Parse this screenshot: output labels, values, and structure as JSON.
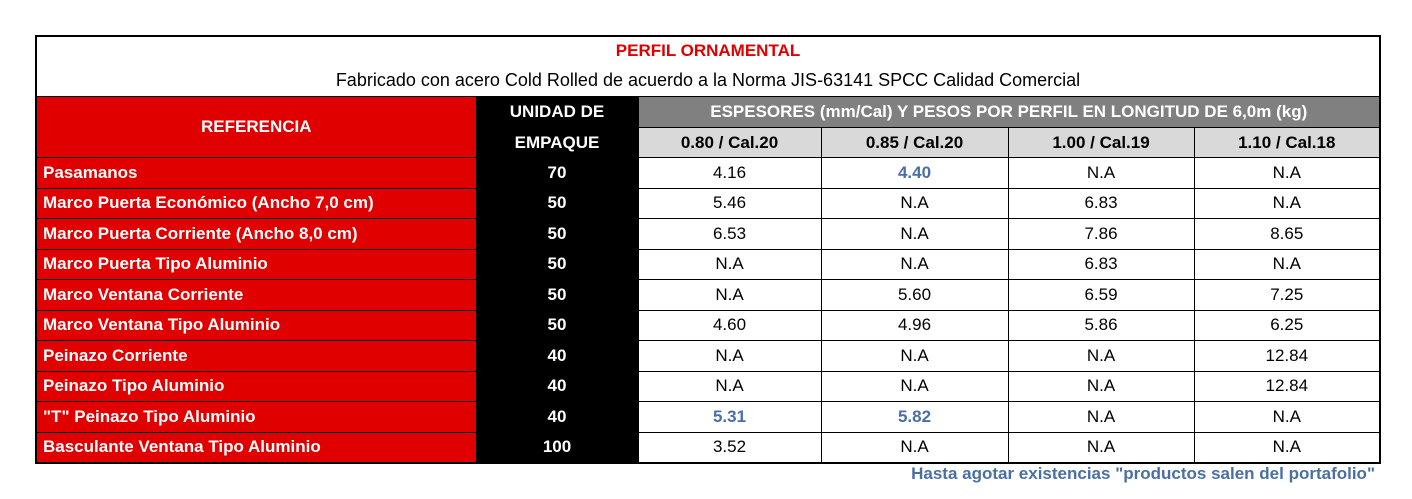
{
  "title": "PERFIL ORNAMENTAL",
  "subtitle": "Fabricado con acero Cold Rolled de acuerdo a la Norma JIS-63141 SPCC Calidad Comercial",
  "headers": {
    "reference": "REFERENCIA",
    "unit": [
      "UNIDAD DE",
      "EMPAQUE"
    ],
    "group": "ESPESORES (mm/Cal) Y PESOS POR PERFIL EN LONGITUD DE 6,0m (kg)",
    "gauges": [
      "0.80 / Cal.20",
      "0.85 / Cal.20",
      "1.00 / Cal.19",
      "1.10 / Cal.18"
    ]
  },
  "rows": [
    {
      "reference": "Pasamanos",
      "unit": "70",
      "values": [
        "4.16",
        "4.40",
        "N.A",
        "N.A"
      ]
    },
    {
      "reference": "Marco Puerta Económico (Ancho 7,0 cm)",
      "unit": "50",
      "values": [
        "5.46",
        "N.A",
        "6.83",
        "N.A"
      ]
    },
    {
      "reference": "Marco Puerta Corriente (Ancho 8,0 cm)",
      "unit": "50",
      "values": [
        "6.53",
        "N.A",
        "7.86",
        "8.65"
      ]
    },
    {
      "reference": "Marco Puerta Tipo Aluminio",
      "unit": "50",
      "values": [
        "N.A",
        "N.A",
        "6.83",
        "N.A"
      ]
    },
    {
      "reference": "Marco Ventana Corriente",
      "unit": "50",
      "values": [
        "N.A",
        "5.60",
        "6.59",
        "7.25"
      ]
    },
    {
      "reference": "Marco Ventana Tipo Aluminio",
      "unit": "50",
      "values": [
        "4.60",
        "4.96",
        "5.86",
        "6.25"
      ]
    },
    {
      "reference": "Peinazo Corriente",
      "unit": "40",
      "values": [
        "N.A",
        "N.A",
        "N.A",
        "12.84"
      ]
    },
    {
      "reference": "Peinazo Tipo Aluminio",
      "unit": "40",
      "values": [
        "N.A",
        "N.A",
        "N.A",
        "12.84"
      ]
    },
    {
      "reference": "\"T\" Peinazo Tipo Aluminio",
      "unit": "40",
      "values": [
        "5.31",
        "5.82",
        "N.A",
        "N.A"
      ]
    },
    {
      "reference": "Basculante Ventana Tipo Aluminio",
      "unit": "100",
      "values": [
        "3.52",
        "N.A",
        "N.A",
        "N.A"
      ]
    }
  ],
  "highlighted": [
    [
      0,
      1
    ],
    [
      8,
      0
    ],
    [
      8,
      1
    ]
  ],
  "highlight_color": "#4a6fa5",
  "footnote": "Hasta agotar existencias \"productos salen del portafolio\""
}
